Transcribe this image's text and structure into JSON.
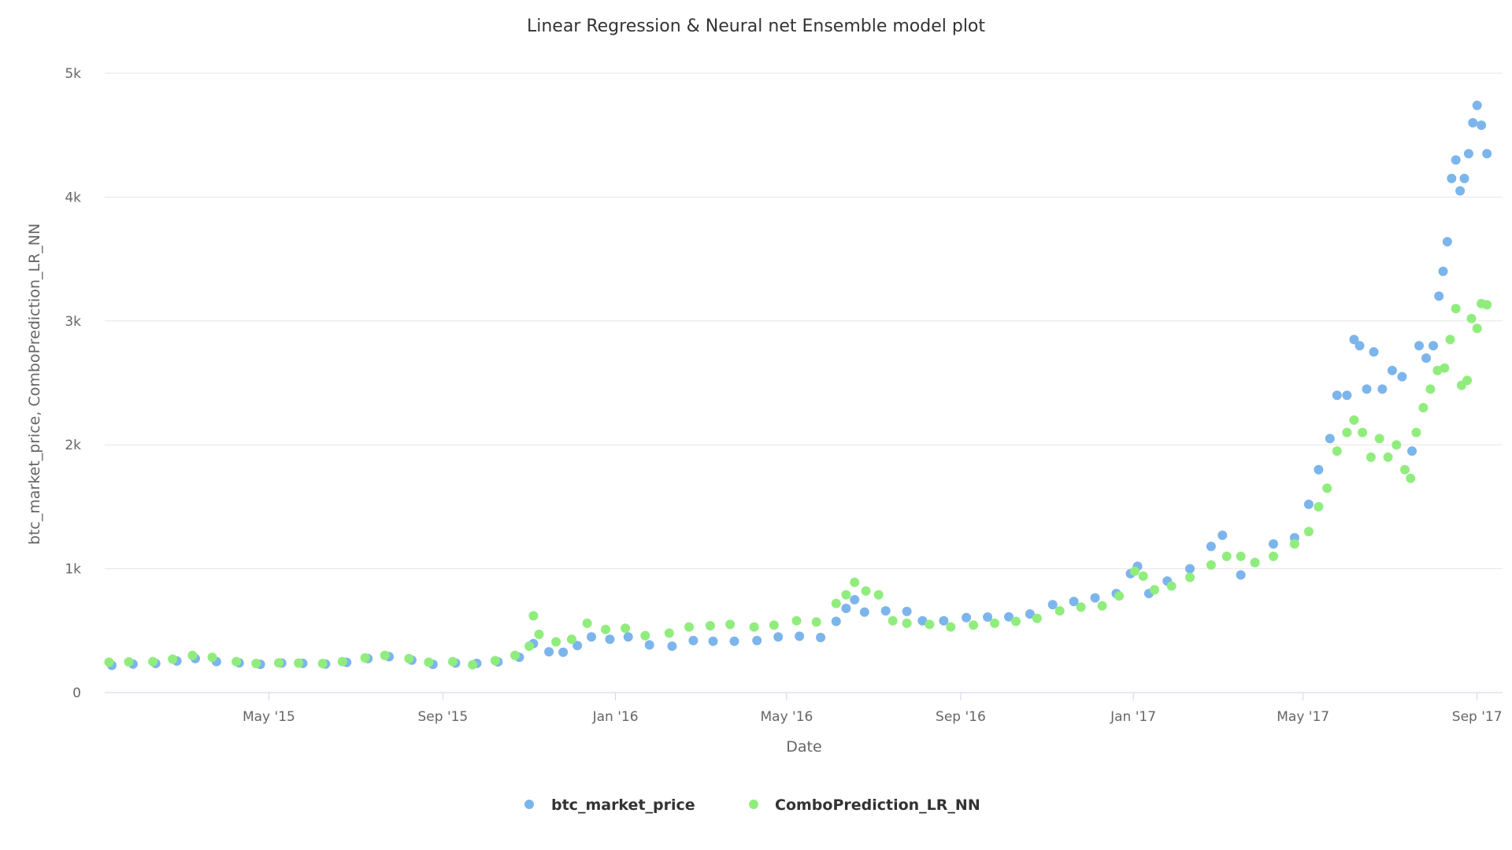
{
  "chart_data": {
    "type": "scatter",
    "title": "Linear Regression & Neural net Ensemble model plot",
    "xlabel": "Date",
    "ylabel": "btc_market_price, ComboPrediction_LR_NN",
    "x_axis_type": "datetime",
    "xlim": [
      "2015-01-05",
      "2017-09-19"
    ],
    "ylim": [
      0,
      5000
    ],
    "x_ticks": [
      {
        "date": "2015-05-01",
        "label": "May '15"
      },
      {
        "date": "2015-09-01",
        "label": "Sep '15"
      },
      {
        "date": "2016-01-01",
        "label": "Jan '16"
      },
      {
        "date": "2016-05-01",
        "label": "May '16"
      },
      {
        "date": "2016-09-01",
        "label": "Sep '16"
      },
      {
        "date": "2017-01-01",
        "label": "Jan '17"
      },
      {
        "date": "2017-05-01",
        "label": "May '17"
      },
      {
        "date": "2017-09-01",
        "label": "Sep '17"
      }
    ],
    "y_ticks": [
      {
        "value": 0,
        "label": "0"
      },
      {
        "value": 1000,
        "label": "1k"
      },
      {
        "value": 2000,
        "label": "2k"
      },
      {
        "value": 3000,
        "label": "3k"
      },
      {
        "value": 4000,
        "label": "4k"
      },
      {
        "value": 5000,
        "label": "5k"
      }
    ],
    "grid": "horizontal",
    "legend_position": "bottom-center",
    "series": [
      {
        "name": "btc_market_price",
        "color": "#7cb5ec",
        "points": [
          [
            "2015-01-10",
            220
          ],
          [
            "2015-01-25",
            230
          ],
          [
            "2015-02-10",
            235
          ],
          [
            "2015-02-25",
            255
          ],
          [
            "2015-03-10",
            275
          ],
          [
            "2015-03-25",
            250
          ],
          [
            "2015-04-10",
            240
          ],
          [
            "2015-04-25",
            228
          ],
          [
            "2015-05-10",
            238
          ],
          [
            "2015-05-25",
            236
          ],
          [
            "2015-06-10",
            230
          ],
          [
            "2015-06-25",
            244
          ],
          [
            "2015-07-10",
            275
          ],
          [
            "2015-07-25",
            290
          ],
          [
            "2015-08-10",
            262
          ],
          [
            "2015-08-25",
            228
          ],
          [
            "2015-09-10",
            238
          ],
          [
            "2015-09-25",
            236
          ],
          [
            "2015-10-10",
            248
          ],
          [
            "2015-10-25",
            285
          ],
          [
            "2015-11-04",
            395
          ],
          [
            "2015-11-15",
            330
          ],
          [
            "2015-11-25",
            325
          ],
          [
            "2015-12-05",
            380
          ],
          [
            "2015-12-15",
            450
          ],
          [
            "2015-12-28",
            430
          ],
          [
            "2016-01-10",
            450
          ],
          [
            "2016-01-25",
            385
          ],
          [
            "2016-02-10",
            375
          ],
          [
            "2016-02-25",
            420
          ],
          [
            "2016-03-10",
            415
          ],
          [
            "2016-03-25",
            415
          ],
          [
            "2016-04-10",
            420
          ],
          [
            "2016-04-25",
            450
          ],
          [
            "2016-05-10",
            455
          ],
          [
            "2016-05-25",
            445
          ],
          [
            "2016-06-05",
            575
          ],
          [
            "2016-06-12",
            680
          ],
          [
            "2016-06-18",
            750
          ],
          [
            "2016-06-25",
            650
          ],
          [
            "2016-07-10",
            660
          ],
          [
            "2016-07-25",
            655
          ],
          [
            "2016-08-05",
            580
          ],
          [
            "2016-08-20",
            580
          ],
          [
            "2016-09-05",
            605
          ],
          [
            "2016-09-20",
            610
          ],
          [
            "2016-10-05",
            612
          ],
          [
            "2016-10-20",
            635
          ],
          [
            "2016-11-05",
            710
          ],
          [
            "2016-11-20",
            735
          ],
          [
            "2016-12-05",
            765
          ],
          [
            "2016-12-20",
            800
          ],
          [
            "2016-12-30",
            960
          ],
          [
            "2017-01-04",
            1020
          ],
          [
            "2017-01-12",
            800
          ],
          [
            "2017-01-25",
            900
          ],
          [
            "2017-02-10",
            1000
          ],
          [
            "2017-02-25",
            1180
          ],
          [
            "2017-03-05",
            1270
          ],
          [
            "2017-03-18",
            950
          ],
          [
            "2017-03-28",
            1050
          ],
          [
            "2017-04-10",
            1200
          ],
          [
            "2017-04-25",
            1250
          ],
          [
            "2017-05-05",
            1520
          ],
          [
            "2017-05-12",
            1800
          ],
          [
            "2017-05-20",
            2050
          ],
          [
            "2017-05-25",
            2400
          ],
          [
            "2017-06-01",
            2400
          ],
          [
            "2017-06-06",
            2850
          ],
          [
            "2017-06-10",
            2800
          ],
          [
            "2017-06-15",
            2450
          ],
          [
            "2017-06-20",
            2750
          ],
          [
            "2017-06-26",
            2450
          ],
          [
            "2017-07-03",
            2600
          ],
          [
            "2017-07-10",
            2550
          ],
          [
            "2017-07-17",
            1950
          ],
          [
            "2017-07-22",
            2800
          ],
          [
            "2017-07-27",
            2700
          ],
          [
            "2017-08-01",
            2800
          ],
          [
            "2017-08-05",
            3200
          ],
          [
            "2017-08-08",
            3400
          ],
          [
            "2017-08-11",
            3640
          ],
          [
            "2017-08-14",
            4150
          ],
          [
            "2017-08-17",
            4300
          ],
          [
            "2017-08-20",
            4050
          ],
          [
            "2017-08-23",
            4150
          ],
          [
            "2017-08-26",
            4350
          ],
          [
            "2017-08-29",
            4600
          ],
          [
            "2017-09-01",
            4740
          ],
          [
            "2017-09-04",
            4580
          ],
          [
            "2017-09-08",
            4350
          ]
        ]
      },
      {
        "name": "ComboPrediction_LR_NN",
        "color": "#90ed7d",
        "points": [
          [
            "2015-01-08",
            245
          ],
          [
            "2015-01-22",
            248
          ],
          [
            "2015-02-08",
            250
          ],
          [
            "2015-02-22",
            270
          ],
          [
            "2015-03-08",
            300
          ],
          [
            "2015-03-22",
            285
          ],
          [
            "2015-04-08",
            250
          ],
          [
            "2015-04-22",
            235
          ],
          [
            "2015-05-08",
            240
          ],
          [
            "2015-05-22",
            238
          ],
          [
            "2015-06-08",
            235
          ],
          [
            "2015-06-22",
            250
          ],
          [
            "2015-07-08",
            280
          ],
          [
            "2015-07-22",
            300
          ],
          [
            "2015-08-08",
            275
          ],
          [
            "2015-08-22",
            245
          ],
          [
            "2015-09-08",
            250
          ],
          [
            "2015-09-22",
            225
          ],
          [
            "2015-10-08",
            258
          ],
          [
            "2015-10-22",
            300
          ],
          [
            "2015-11-01",
            375
          ],
          [
            "2015-11-04",
            620
          ],
          [
            "2015-11-08",
            470
          ],
          [
            "2015-11-20",
            410
          ],
          [
            "2015-12-01",
            430
          ],
          [
            "2015-12-12",
            560
          ],
          [
            "2015-12-25",
            510
          ],
          [
            "2016-01-08",
            520
          ],
          [
            "2016-01-22",
            460
          ],
          [
            "2016-02-08",
            480
          ],
          [
            "2016-02-22",
            530
          ],
          [
            "2016-03-08",
            540
          ],
          [
            "2016-03-22",
            550
          ],
          [
            "2016-04-08",
            530
          ],
          [
            "2016-04-22",
            545
          ],
          [
            "2016-05-08",
            580
          ],
          [
            "2016-05-22",
            570
          ],
          [
            "2016-06-05",
            720
          ],
          [
            "2016-06-12",
            790
          ],
          [
            "2016-06-18",
            890
          ],
          [
            "2016-06-26",
            820
          ],
          [
            "2016-07-05",
            790
          ],
          [
            "2016-07-15",
            580
          ],
          [
            "2016-07-25",
            560
          ],
          [
            "2016-08-10",
            550
          ],
          [
            "2016-08-25",
            530
          ],
          [
            "2016-09-10",
            545
          ],
          [
            "2016-09-25",
            560
          ],
          [
            "2016-10-10",
            575
          ],
          [
            "2016-10-25",
            600
          ],
          [
            "2016-11-10",
            660
          ],
          [
            "2016-11-25",
            690
          ],
          [
            "2016-12-10",
            700
          ],
          [
            "2016-12-22",
            780
          ],
          [
            "2017-01-02",
            980
          ],
          [
            "2017-01-08",
            940
          ],
          [
            "2017-01-16",
            830
          ],
          [
            "2017-01-28",
            860
          ],
          [
            "2017-02-10",
            930
          ],
          [
            "2017-02-25",
            1030
          ],
          [
            "2017-03-08",
            1100
          ],
          [
            "2017-03-18",
            1100
          ],
          [
            "2017-03-28",
            1050
          ],
          [
            "2017-04-10",
            1100
          ],
          [
            "2017-04-25",
            1200
          ],
          [
            "2017-05-05",
            1300
          ],
          [
            "2017-05-12",
            1500
          ],
          [
            "2017-05-18",
            1650
          ],
          [
            "2017-05-25",
            1950
          ],
          [
            "2017-06-01",
            2100
          ],
          [
            "2017-06-06",
            2200
          ],
          [
            "2017-06-12",
            2100
          ],
          [
            "2017-06-18",
            1900
          ],
          [
            "2017-06-24",
            2050
          ],
          [
            "2017-06-30",
            1900
          ],
          [
            "2017-07-06",
            2000
          ],
          [
            "2017-07-12",
            1800
          ],
          [
            "2017-07-16",
            1730
          ],
          [
            "2017-07-20",
            2100
          ],
          [
            "2017-07-25",
            2300
          ],
          [
            "2017-07-30",
            2450
          ],
          [
            "2017-08-04",
            2600
          ],
          [
            "2017-08-09",
            2620
          ],
          [
            "2017-08-13",
            2850
          ],
          [
            "2017-08-17",
            3100
          ],
          [
            "2017-08-21",
            2480
          ],
          [
            "2017-08-25",
            2520
          ],
          [
            "2017-08-28",
            3020
          ],
          [
            "2017-09-01",
            2940
          ],
          [
            "2017-09-04",
            3140
          ],
          [
            "2017-09-08",
            3130
          ]
        ]
      }
    ]
  }
}
